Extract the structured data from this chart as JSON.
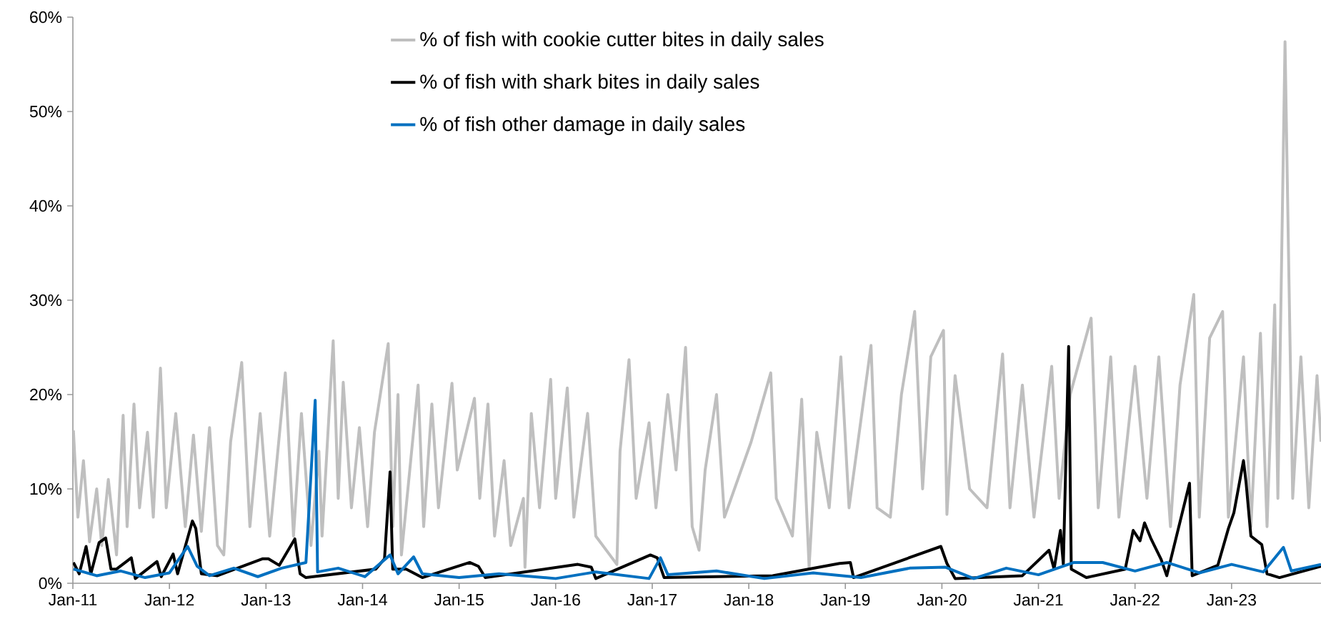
{
  "chart_data": {
    "type": "line",
    "xlim": [
      "2011-01-01",
      "2023-12-05"
    ],
    "ylim": [
      0,
      60
    ],
    "xticks": [
      {
        "value": "2011-01-01",
        "label": "Jan-11"
      },
      {
        "value": "2012-01-01",
        "label": "Jan-12"
      },
      {
        "value": "2013-01-01",
        "label": "Jan-13"
      },
      {
        "value": "2014-01-01",
        "label": "Jan-14"
      },
      {
        "value": "2015-01-01",
        "label": "Jan-15"
      },
      {
        "value": "2016-01-01",
        "label": "Jan-16"
      },
      {
        "value": "2017-01-01",
        "label": "Jan-17"
      },
      {
        "value": "2018-01-01",
        "label": "Jan-18"
      },
      {
        "value": "2019-01-01",
        "label": "Jan-19"
      },
      {
        "value": "2020-01-01",
        "label": "Jan-20"
      },
      {
        "value": "2021-01-01",
        "label": "Jan-21"
      },
      {
        "value": "2022-01-01",
        "label": "Jan-22"
      },
      {
        "value": "2023-01-01",
        "label": "Jan-23"
      }
    ],
    "yticks": [
      {
        "value": 0,
        "label": "0%"
      },
      {
        "value": 10,
        "label": "10%"
      },
      {
        "value": 20,
        "label": "20%"
      },
      {
        "value": 30,
        "label": "30%"
      },
      {
        "value": 40,
        "label": "40%"
      },
      {
        "value": 50,
        "label": "50%"
      },
      {
        "value": 60,
        "label": "60%"
      }
    ],
    "grid": false,
    "legend": "top",
    "marker": "none",
    "line_style": "solid",
    "series": [
      {
        "name": "% of fish with cookie cutter bites in daily sales",
        "color": "#bfbfbf",
        "x": [
          "2011-01-03",
          "2011-01-20",
          "2011-02-10",
          "2011-03-05",
          "2011-04-01",
          "2011-04-20",
          "2011-05-15",
          "2011-06-15",
          "2011-07-10",
          "2011-07-25",
          "2011-08-20",
          "2011-09-10",
          "2011-10-10",
          "2011-11-01",
          "2011-11-28",
          "2011-12-20",
          "2012-01-25",
          "2012-03-01",
          "2012-04-01",
          "2012-05-01",
          "2012-06-01",
          "2012-07-01",
          "2012-07-25",
          "2012-08-20",
          "2012-10-01",
          "2012-11-01",
          "2012-12-10",
          "2013-01-15",
          "2013-03-15",
          "2013-04-15",
          "2013-05-15",
          "2013-06-20",
          "2013-07-20",
          "2013-08-01",
          "2013-09-12",
          "2013-10-01",
          "2013-10-20",
          "2013-11-20",
          "2013-12-20",
          "2014-01-20",
          "2014-02-15",
          "2014-04-08",
          "2014-04-25",
          "2014-05-15",
          "2014-05-28",
          "2014-07-30",
          "2014-08-20",
          "2014-09-20",
          "2014-10-15",
          "2014-12-05",
          "2014-12-25",
          "2015-02-28",
          "2015-03-20",
          "2015-04-20",
          "2015-05-15",
          "2015-06-20",
          "2015-07-15",
          "2015-09-01",
          "2015-09-07",
          "2015-10-01",
          "2015-11-01",
          "2015-12-13",
          "2016-01-01",
          "2016-02-14",
          "2016-03-10",
          "2016-05-01",
          "2016-06-01",
          "2016-08-20",
          "2016-09-01",
          "2016-10-05",
          "2016-11-01",
          "2016-12-20",
          "2017-01-15",
          "2017-03-01",
          "2017-04-01",
          "2017-05-07",
          "2017-06-01",
          "2017-06-27",
          "2017-07-20",
          "2017-09-01",
          "2017-10-01",
          "2018-01-10",
          "2018-03-25",
          "2018-04-15",
          "2018-06-15",
          "2018-07-20",
          "2018-08-17",
          "2018-09-15",
          "2018-11-01",
          "2018-12-15",
          "2019-01-15",
          "2019-04-08",
          "2019-05-01",
          "2019-06-20",
          "2019-08-01",
          "2019-09-20",
          "2019-10-20",
          "2019-11-20",
          "2020-01-07",
          "2020-01-20",
          "2020-02-20",
          "2020-04-15",
          "2020-06-20",
          "2020-08-18",
          "2020-09-15",
          "2020-11-01",
          "2020-12-15",
          "2021-02-20",
          "2021-03-20",
          "2021-05-01",
          "2021-07-19",
          "2021-08-15",
          "2021-10-01",
          "2021-11-01",
          "2022-01-01",
          "2022-02-15",
          "2022-04-01",
          "2022-05-15",
          "2022-06-20",
          "2022-08-11",
          "2022-09-01",
          "2022-10-10",
          "2022-11-28",
          "2022-12-20",
          "2023-02-15",
          "2023-03-15",
          "2023-04-20",
          "2023-05-15",
          "2023-06-13",
          "2023-06-25",
          "2023-07-22",
          "2023-08-05",
          "2023-08-20",
          "2023-09-20",
          "2023-10-20",
          "2023-11-20",
          "2023-12-05"
        ],
        "values": [
          16.2,
          7,
          13,
          4.4,
          10,
          4,
          11,
          3,
          17.8,
          6,
          19,
          8,
          16,
          7,
          22.8,
          8,
          18,
          6,
          15.7,
          5.5,
          16.5,
          4,
          3,
          15,
          23.4,
          6,
          18,
          5,
          22.3,
          5,
          18,
          4,
          14,
          5,
          25.7,
          9,
          21.3,
          8,
          16.5,
          6,
          16,
          25.4,
          6,
          20,
          3,
          21,
          6,
          19,
          8,
          21.2,
          12,
          19.6,
          9,
          19,
          5,
          13,
          4,
          9,
          1.7,
          18,
          8,
          21.6,
          9,
          20.7,
          7,
          18,
          5,
          2,
          14,
          23.7,
          9,
          17,
          8,
          20,
          12,
          25.0,
          6,
          3.5,
          12,
          20,
          7,
          15,
          22.3,
          9,
          5,
          19.5,
          1.7,
          16,
          8,
          24,
          8,
          25.2,
          8,
          7,
          20,
          28.8,
          10,
          24,
          26.8,
          7.3,
          22,
          10,
          8,
          24.3,
          8,
          21,
          7,
          23,
          9,
          20,
          28.1,
          8,
          24,
          7,
          23,
          9,
          24,
          6,
          21,
          30.6,
          7,
          26,
          28.8,
          7,
          24,
          6,
          26.5,
          6,
          29.5,
          9,
          57.4,
          33.6,
          9,
          24,
          8,
          22,
          15
        ]
      },
      {
        "name": "% of fish with shark bites in daily sales",
        "color": "#000000",
        "x": [
          "2011-01-03",
          "2011-01-25",
          "2011-02-20",
          "2011-03-10",
          "2011-04-10",
          "2011-05-05",
          "2011-05-25",
          "2011-06-15",
          "2011-08-10",
          "2011-08-25",
          "2011-11-15",
          "2011-12-01",
          "2012-01-15",
          "2012-02-01",
          "2012-03-20",
          "2012-03-28",
          "2012-04-10",
          "2012-05-01",
          "2012-07-01",
          "2012-12-20",
          "2013-01-10",
          "2013-02-20",
          "2013-04-20",
          "2013-05-10",
          "2013-06-01",
          "2014-02-20",
          "2014-03-25",
          "2014-04-15",
          "2014-04-25",
          "2014-06-15",
          "2014-08-15",
          "2015-02-10",
          "2015-03-15",
          "2015-04-10",
          "2016-03-25",
          "2016-05-15",
          "2016-06-01",
          "2016-12-25",
          "2017-01-20",
          "2017-02-15",
          "2018-04-01",
          "2018-12-10",
          "2019-01-20",
          "2019-02-01",
          "2019-12-28",
          "2020-01-20",
          "2020-02-20",
          "2020-11-01",
          "2021-02-10",
          "2021-03-01",
          "2021-03-25",
          "2021-04-05",
          "2021-04-25",
          "2021-05-05",
          "2021-07-01",
          "2021-11-25",
          "2021-12-25",
          "2022-01-20",
          "2022-02-06",
          "2022-03-01",
          "2022-04-10",
          "2022-05-01",
          "2022-07-26",
          "2022-08-05",
          "2022-11-10",
          "2022-12-20",
          "2023-01-10",
          "2023-02-15",
          "2023-02-25",
          "2023-03-15",
          "2023-04-25",
          "2023-05-15",
          "2023-07-01",
          "2023-12-05"
        ],
        "values": [
          2.2,
          1,
          3.9,
          1,
          4.3,
          4.8,
          1.5,
          1.5,
          2.7,
          0.5,
          2.3,
          0.7,
          3.1,
          1,
          5.8,
          6.6,
          5.8,
          1,
          0.8,
          2.6,
          2.6,
          1.9,
          4.7,
          1,
          0.6,
          1.5,
          2.6,
          11.8,
          1.5,
          1.5,
          0.6,
          2.2,
          1.8,
          0.6,
          2,
          1.7,
          0.5,
          3,
          2.7,
          0.6,
          0.8,
          2.1,
          2.2,
          0.6,
          3.9,
          2.1,
          0.5,
          0.8,
          3.5,
          1.5,
          5.6,
          2,
          25.1,
          1.5,
          0.6,
          1.5,
          5.6,
          4.5,
          6.4,
          4.8,
          2.5,
          0.8,
          10.6,
          0.8,
          1.9,
          5.8,
          7.5,
          13.0,
          10.6,
          5,
          4.1,
          1,
          0.6,
          1.8
        ]
      },
      {
        "name": "% of fish other damage in daily sales",
        "color": "#0070c0",
        "x": [
          "2011-01-03",
          "2011-04-01",
          "2011-07-01",
          "2011-10-01",
          "2012-01-01",
          "2012-03-10",
          "2012-04-15",
          "2012-06-01",
          "2012-09-01",
          "2012-12-01",
          "2013-03-01",
          "2013-06-01",
          "2013-07-06",
          "2013-07-15",
          "2013-10-01",
          "2014-01-10",
          "2014-04-15",
          "2014-05-15",
          "2014-07-13",
          "2014-08-15",
          "2015-01-01",
          "2015-06-01",
          "2016-01-01",
          "2016-06-01",
          "2016-12-20",
          "2017-02-01",
          "2017-03-01",
          "2017-09-01",
          "2018-03-01",
          "2018-09-01",
          "2019-03-01",
          "2019-09-01",
          "2020-01-15",
          "2020-05-01",
          "2020-09-01",
          "2021-01-01",
          "2021-05-15",
          "2021-09-01",
          "2022-01-01",
          "2022-05-01",
          "2022-09-01",
          "2023-01-01",
          "2023-05-01",
          "2023-07-16",
          "2023-08-15",
          "2023-12-05"
        ],
        "values": [
          1.5,
          0.8,
          1.3,
          0.6,
          1.1,
          3.9,
          1.8,
          0.8,
          1.6,
          0.7,
          1.6,
          2.2,
          19.4,
          1.2,
          1.6,
          0.7,
          3.0,
          1,
          2.8,
          1,
          0.6,
          1,
          0.5,
          1.2,
          0.5,
          2.7,
          0.9,
          1.3,
          0.5,
          1.1,
          0.6,
          1.6,
          1.7,
          0.5,
          1.6,
          0.9,
          2.2,
          2.2,
          1.3,
          2.2,
          1.1,
          2.0,
          1.2,
          3.8,
          1.3,
          2.0
        ]
      }
    ]
  }
}
